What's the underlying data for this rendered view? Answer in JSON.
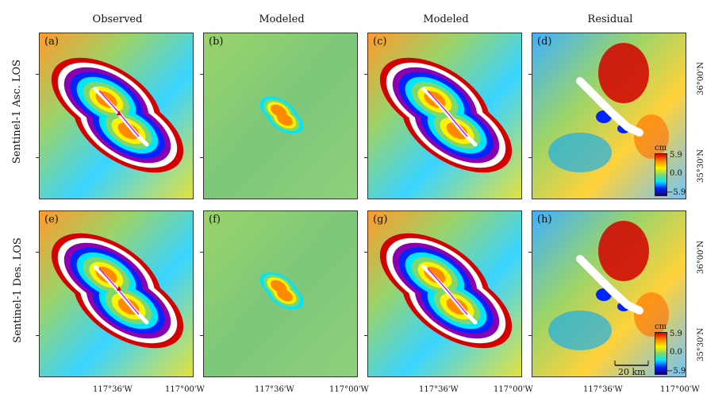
{
  "column_titles": [
    "Observed",
    "Modeled",
    "Modeled",
    "Residual"
  ],
  "row_labels": [
    "Sentinel-1  Asc. LOS",
    "Sentinel-1  Des. LOS"
  ],
  "panel_labels": [
    "(a)",
    "(b)",
    "(c)",
    "(d)",
    "(e)",
    "(f)",
    "(g)",
    "(h)"
  ],
  "x_ticks": [
    "117°36'W",
    "117°00'W"
  ],
  "y_ticks": [
    "36°00'N",
    "35°30'N"
  ],
  "colorbar": {
    "unit": "cm",
    "max": "5.9",
    "mid": "0.0",
    "min": "−5.9"
  },
  "scale_bar": "20 km",
  "colors": {
    "red": "#d40000",
    "yellow": "#fff200",
    "green": "#7ed86b",
    "cyan": "#00e5ff",
    "blue": "#0024ff"
  }
}
